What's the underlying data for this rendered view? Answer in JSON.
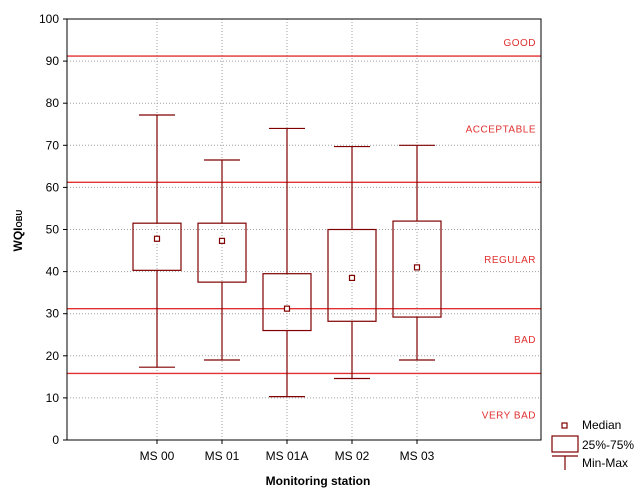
{
  "chart_data": {
    "type": "boxplot",
    "xlabel": "Monitoring station",
    "ylabel": {
      "main": "WQI",
      "subscript": "OBU"
    },
    "ylim": [
      0,
      100
    ],
    "yticks": [
      0,
      10,
      20,
      30,
      40,
      50,
      60,
      70,
      80,
      90,
      100
    ],
    "grid": true,
    "legend_position": "bottom-right",
    "categories": [
      "MS 00",
      "MS 01",
      "MS 01A",
      "MS 02",
      "MS 03"
    ],
    "boxes": [
      {
        "label": "MS 00",
        "min": 17.3,
        "q1": 40.3,
        "median": 47.8,
        "q3": 51.5,
        "max": 77.2
      },
      {
        "label": "MS 01",
        "min": 19.0,
        "q1": 37.5,
        "median": 47.3,
        "q3": 51.5,
        "max": 66.5
      },
      {
        "label": "MS 01A",
        "min": 10.3,
        "q1": 26.0,
        "median": 31.2,
        "q3": 39.5,
        "max": 74.0
      },
      {
        "label": "MS 02",
        "min": 14.6,
        "q1": 28.2,
        "median": 38.5,
        "q3": 50.0,
        "max": 69.7
      },
      {
        "label": "MS 03",
        "min": 19.0,
        "q1": 29.2,
        "median": 41.0,
        "q3": 52.0,
        "max": 70.0
      }
    ],
    "thresholds": [
      {
        "value": 91.2
      },
      {
        "value": 61.2
      },
      {
        "value": 31.2
      },
      {
        "value": 15.8
      }
    ],
    "zones": [
      {
        "label": "GOOD",
        "label_y": 94.5
      },
      {
        "label": "ACCEPTABLE",
        "label_y": 74.0
      },
      {
        "label": "REGULAR",
        "label_y": 43.0
      },
      {
        "label": "BAD",
        "label_y": 24.0
      },
      {
        "label": "VERY BAD",
        "label_y": 6.0
      }
    ],
    "legend": [
      {
        "symbol": "median-marker",
        "label": "Median"
      },
      {
        "symbol": "box",
        "label": "25%-75%"
      },
      {
        "symbol": "whisker",
        "label": "Min-Max"
      }
    ],
    "colors": {
      "box": "#800000",
      "threshold": "#e03030",
      "zone_label": "#e03030",
      "grid": "#a0a0a0",
      "axis": "#000000"
    }
  }
}
